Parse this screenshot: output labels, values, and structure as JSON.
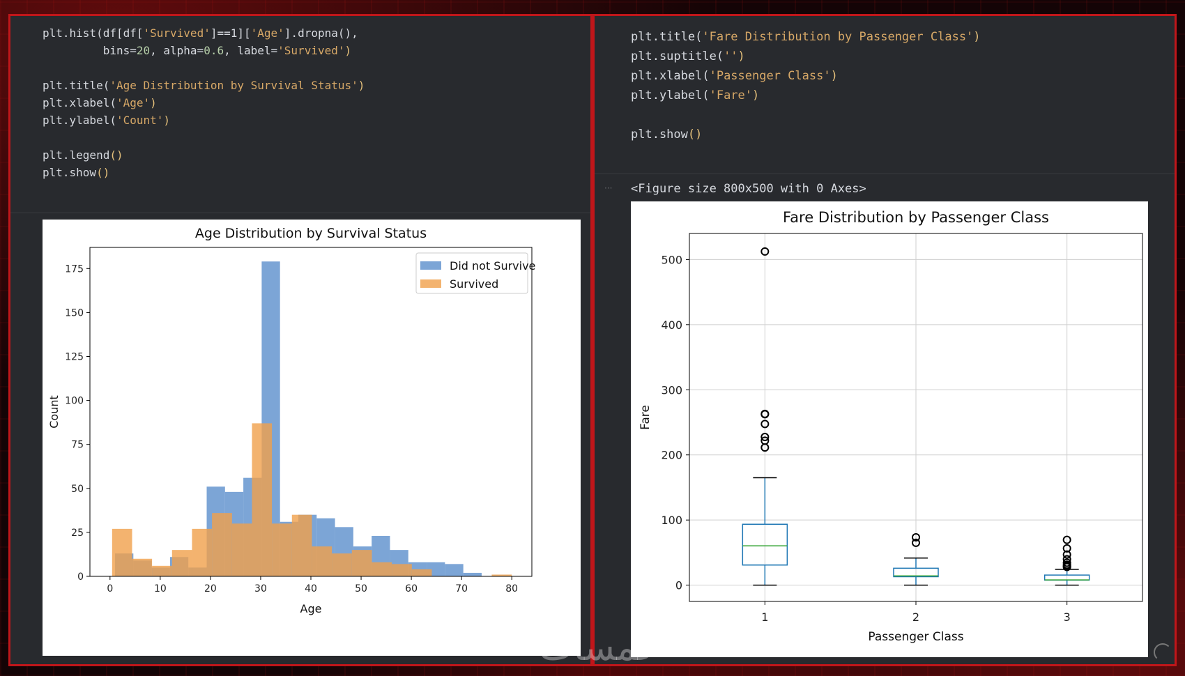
{
  "left_panel": {
    "code_lines": [
      [
        [
          "fn",
          "plt.hist(df[df["
        ],
        [
          "str",
          "'Survived'"
        ],
        [
          "op",
          "]==1]["
        ],
        [
          "str",
          "'Age'"
        ],
        [
          "op",
          "].dropna(),"
        ]
      ],
      [
        [
          "op",
          "         bins="
        ],
        [
          "num",
          "20"
        ],
        [
          "op",
          ", alpha="
        ],
        [
          "num",
          "0.6"
        ],
        [
          "op",
          ", label="
        ],
        [
          "str",
          "'Survived'"
        ],
        [
          "par",
          ")"
        ]
      ],
      [],
      [
        [
          "fn",
          "plt.title("
        ],
        [
          "str",
          "'Age Distribution by Survival Status'"
        ],
        [
          "par",
          ")"
        ]
      ],
      [
        [
          "fn",
          "plt.xlabel("
        ],
        [
          "str",
          "'Age'"
        ],
        [
          "par",
          ")"
        ]
      ],
      [
        [
          "fn",
          "plt.ylabel("
        ],
        [
          "str",
          "'Count'"
        ],
        [
          "par",
          ")"
        ]
      ],
      [],
      [
        [
          "fn",
          "plt.legend"
        ],
        [
          "par",
          "()"
        ]
      ],
      [
        [
          "fn",
          "plt.show"
        ],
        [
          "par",
          "()"
        ]
      ]
    ]
  },
  "right_panel": {
    "code_lines": [
      [
        [
          "fn",
          "plt.title("
        ],
        [
          "str",
          "'Fare Distribution by Passenger Class'"
        ],
        [
          "par",
          ")"
        ]
      ],
      [
        [
          "fn",
          "plt.suptitle("
        ],
        [
          "str",
          "''"
        ],
        [
          "par",
          ")"
        ]
      ],
      [
        [
          "fn",
          "plt.xlabel("
        ],
        [
          "str",
          "'Passenger Class'"
        ],
        [
          "par",
          ")"
        ]
      ],
      [
        [
          "fn",
          "plt.ylabel("
        ],
        [
          "str",
          "'Fare'"
        ],
        [
          "par",
          ")"
        ]
      ],
      [],
      [
        [
          "fn",
          "plt.show"
        ],
        [
          "par",
          "()"
        ]
      ]
    ],
    "figure_text": "<Figure size 800x500 with 0 Axes>"
  },
  "watermark_text": "خمسات",
  "chart_data": [
    {
      "type": "bar",
      "title": "Age Distribution by Survival Status",
      "xlabel": "Age",
      "ylabel": "Count",
      "xlim": [
        -4,
        84
      ],
      "ylim": [
        0,
        187
      ],
      "xticks": [
        0,
        10,
        20,
        30,
        40,
        50,
        60,
        70,
        80
      ],
      "yticks": [
        0,
        25,
        50,
        75,
        100,
        125,
        150,
        175
      ],
      "legend_position": "top-right",
      "series": [
        {
          "name": "Did not Survive",
          "color": "#5b8fcc",
          "bin_edges": [
            1,
            4.65,
            8.3,
            11.95,
            15.6,
            19.25,
            22.9,
            26.55,
            30.2,
            33.85,
            37.5,
            41.15,
            44.8,
            48.45,
            52.1,
            55.75,
            59.4,
            63.05,
            66.7,
            70.35,
            74
          ],
          "values": [
            13,
            9,
            5,
            11,
            5,
            51,
            48,
            56,
            179,
            31,
            35,
            33,
            28,
            17,
            23,
            15,
            8,
            8,
            7,
            2
          ]
        },
        {
          "name": "Survived",
          "color": "#f0a04b",
          "bin_edges": [
            0.42,
            4.4,
            8.37,
            12.35,
            16.33,
            20.31,
            24.29,
            28.27,
            32.24,
            36.22,
            40.2,
            44.18,
            48.16,
            52.14,
            56.12,
            60.1,
            64.08,
            68.05,
            72.03,
            76.01,
            80
          ],
          "values": [
            27,
            10,
            6,
            15,
            27,
            36,
            30,
            87,
            30,
            35,
            17,
            13,
            15,
            8,
            7,
            4,
            0,
            0,
            0,
            1
          ]
        }
      ]
    },
    {
      "type": "box",
      "title": "Fare Distribution by Passenger Class",
      "xlabel": "Passenger Class",
      "ylabel": "Fare",
      "categories": [
        "1",
        "2",
        "3"
      ],
      "ylim": [
        -25,
        540
      ],
      "yticks": [
        0,
        100,
        200,
        300,
        400,
        500
      ],
      "grid": true,
      "boxes": [
        {
          "whisker_low": 0,
          "q1": 30.9,
          "median": 60.3,
          "q3": 93.5,
          "whisker_high": 164.9,
          "outliers": [
            211.3,
            221.8,
            227.5,
            247.5,
            262.4,
            263,
            512.3
          ]
        },
        {
          "whisker_low": 0,
          "q1": 13,
          "median": 14.25,
          "q3": 26,
          "whisker_high": 41.6,
          "outliers": [
            65,
            73.5
          ]
        },
        {
          "whisker_low": 0,
          "q1": 7.75,
          "median": 8.05,
          "q3": 15.5,
          "whisker_high": 24.2,
          "outliers": [
            27.9,
            29.1,
            31.3,
            34.4,
            39.7,
            46.9,
            56.5,
            69.55
          ]
        }
      ]
    }
  ]
}
